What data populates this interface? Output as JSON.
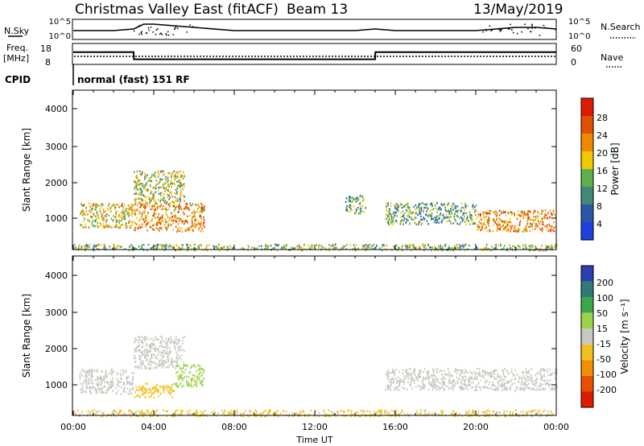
{
  "header": {
    "station": "Christmas Valley East (fitACF)",
    "beam": "Beam 13",
    "date": "13/May/2019"
  },
  "top_panels": {
    "nsky_label": "N.Sky",
    "nsearch_label": "N.Search",
    "nave_label": "Nave",
    "freq_label_1": "Freq.",
    "freq_label_2": "[MHz]",
    "cpid_label": "CPID",
    "nsky_ticks": [
      "10^5",
      "10^0"
    ],
    "nsearch_ticks": [
      "10^5",
      "10^0"
    ],
    "freq_ticks": [
      "18",
      "8"
    ],
    "nave_ticks": [
      "60",
      "0"
    ],
    "cpid_text": "normal (fast) 151 RF"
  },
  "power_panel": {
    "ylabel": "Slant Range [km]",
    "yticks": [
      "4000",
      "3000",
      "2000",
      "1000"
    ],
    "colorbar_label": "Power [dB]",
    "colorbar_ticks": [
      "28",
      "24",
      "20",
      "16",
      "12",
      "8",
      "4"
    ],
    "colors": [
      "#1f3fe0",
      "#2a55a8",
      "#3f8a78",
      "#5fb04a",
      "#f0c800",
      "#f08800",
      "#e05000",
      "#e01a00"
    ]
  },
  "velocity_panel": {
    "ylabel": "Slant Range [km]",
    "yticks": [
      "4000",
      "3000",
      "2000",
      "1000"
    ],
    "colorbar_label": "Velocity [m s⁻¹]",
    "colorbar_ticks": [
      "200",
      "100",
      "50",
      "15",
      "-15",
      "-50",
      "-100",
      "-200"
    ],
    "colors": [
      "#2a3fb0",
      "#2e7a78",
      "#3aa84a",
      "#9ad24a",
      "#c8c8c0",
      "#f0c020",
      "#f09000",
      "#e85000",
      "#e01a00"
    ]
  },
  "xaxis": {
    "ticks": [
      "00:00",
      "04:00",
      "08:00",
      "12:00",
      "16:00",
      "20:00",
      "00:00"
    ],
    "label": "Time UT"
  },
  "chart_data": [
    {
      "type": "line",
      "series": [
        {
          "x": [
            0,
            1,
            2,
            3,
            3.5,
            4,
            5,
            6,
            8,
            10,
            12,
            14,
            15,
            16,
            18,
            20,
            21,
            22,
            23,
            24
          ],
          "values": [
            2,
            2,
            2,
            2.5,
            4,
            4,
            3.5,
            3,
            2,
            2,
            2,
            2,
            2.5,
            2,
            2,
            2,
            2.5,
            3,
            3,
            2.5
          ]
        }
      ],
      "ylim": [
        0,
        5
      ]
    },
    {
      "type": "line",
      "series": [
        {
          "x": [
            0,
            3,
            3.01,
            15,
            15.01,
            24
          ],
          "values": [
            14,
            14,
            10,
            10,
            14,
            14
          ]
        }
      ],
      "ylim": [
        8,
        18
      ]
    },
    {
      "type": "heatmap",
      "ylabel": "Slant Range [km]",
      "colorbar": "Power [dB]",
      "xlim": [
        0,
        24
      ],
      "ylim": [
        180,
        4600
      ],
      "regions": [
        {
          "t": [
            0.3,
            3.0
          ],
          "r": [
            800,
            1500
          ],
          "value": 18
        },
        {
          "t": [
            3.0,
            6.5
          ],
          "r": [
            700,
            1500
          ],
          "value": 22
        },
        {
          "t": [
            3.0,
            5.5
          ],
          "r": [
            1500,
            2400
          ],
          "value": 16
        },
        {
          "t": [
            13.5,
            14.5
          ],
          "r": [
            1200,
            1700
          ],
          "value": 12
        },
        {
          "t": [
            15.5,
            20.0
          ],
          "r": [
            900,
            1500
          ],
          "value": 12
        },
        {
          "t": [
            20.0,
            24.0
          ],
          "r": [
            700,
            1300
          ],
          "value": 22
        },
        {
          "t": [
            0,
            24
          ],
          "r": [
            180,
            350
          ],
          "value": 14
        }
      ]
    },
    {
      "type": "heatmap",
      "ylabel": "Slant Range [km]",
      "colorbar": "Velocity [m s⁻¹]",
      "xlim": [
        0,
        24
      ],
      "ylim": [
        180,
        4600
      ],
      "regions": [
        {
          "t": [
            0.3,
            3.0
          ],
          "r": [
            800,
            1500
          ],
          "value": 0
        },
        {
          "t": [
            3.0,
            5.5
          ],
          "r": [
            1500,
            2400
          ],
          "value": 0
        },
        {
          "t": [
            3.0,
            5.0
          ],
          "r": [
            700,
            1100
          ],
          "value": -30
        },
        {
          "t": [
            5.0,
            6.5
          ],
          "r": [
            1000,
            1600
          ],
          "value": 40
        },
        {
          "t": [
            15.5,
            24.0
          ],
          "r": [
            900,
            1500
          ],
          "value": 0
        },
        {
          "t": [
            0,
            24
          ],
          "r": [
            180,
            350
          ],
          "value": -20
        }
      ]
    }
  ]
}
